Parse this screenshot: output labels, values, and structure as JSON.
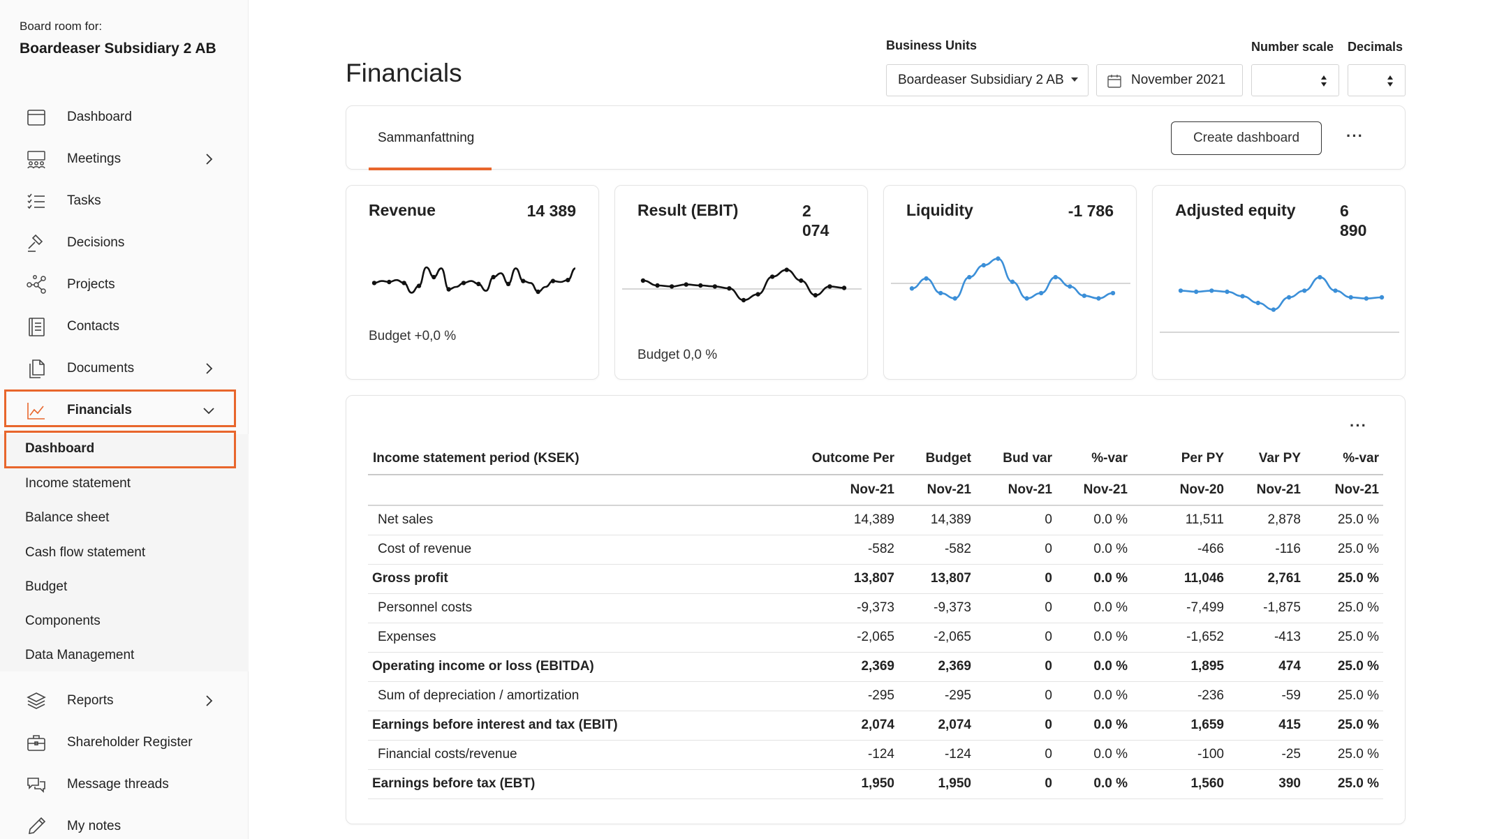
{
  "sidebar": {
    "board_for_label": "Board room for:",
    "board_name": "Boardeaser Subsidiary 2 AB",
    "items": [
      {
        "label": "Dashboard"
      },
      {
        "label": "Meetings"
      },
      {
        "label": "Tasks"
      },
      {
        "label": "Decisions"
      },
      {
        "label": "Projects"
      },
      {
        "label": "Contacts"
      },
      {
        "label": "Documents"
      },
      {
        "label": "Financials"
      },
      {
        "label": "Reports"
      },
      {
        "label": "Shareholder Register"
      },
      {
        "label": "Message threads"
      },
      {
        "label": "My notes"
      }
    ],
    "financials_sub": [
      {
        "label": "Dashboard"
      },
      {
        "label": "Income statement"
      },
      {
        "label": "Balance sheet"
      },
      {
        "label": "Cash flow statement"
      },
      {
        "label": "Budget"
      },
      {
        "label": "Components"
      },
      {
        "label": "Data Management"
      }
    ],
    "highlight_color": "#e8662c"
  },
  "header": {
    "title": "Financials",
    "business_units_label": "Business Units",
    "business_unit_value": "Boardeaser Subsidiary 2 AB",
    "period_value": "November 2021",
    "number_scale_label": "Number scale",
    "number_scale_value": "",
    "decimals_label": "Decimals",
    "decimals_value": ""
  },
  "tabs": {
    "active_tab": "Sammanfattning",
    "create_button": "Create dashboard",
    "more": "···",
    "accent_color": "#e8662c"
  },
  "kpis": [
    {
      "title": "Revenue",
      "value": "14 389",
      "budget": "Budget +0,0 %",
      "line_color": "#111111",
      "spark": [
        0.42,
        0.38,
        0.4,
        0.36,
        0.42,
        0.62,
        0.48,
        0.1,
        0.3,
        0.12,
        0.55,
        0.5,
        0.42,
        0.38,
        0.44,
        0.58,
        0.3,
        0.22,
        0.44,
        0.12,
        0.38,
        0.42,
        0.6,
        0.5,
        0.38,
        0.4,
        0.36,
        0.12
      ]
    },
    {
      "title": "Result (EBIT)",
      "value": "2\n074",
      "budget": "Budget 0,0 %",
      "line_color": "#111111",
      "spark": [
        0.3,
        0.4,
        0.42,
        0.38,
        0.4,
        0.42,
        0.46,
        0.7,
        0.58,
        0.22,
        0.08,
        0.3,
        0.6,
        0.42,
        0.45
      ]
    },
    {
      "title": "Liquidity",
      "value": "-1 786",
      "budget": "",
      "line_color": "#3b8fd8",
      "spark": [
        0.55,
        0.4,
        0.62,
        0.7,
        0.38,
        0.2,
        0.1,
        0.45,
        0.7,
        0.62,
        0.38,
        0.52,
        0.66,
        0.7,
        0.62
      ]
    },
    {
      "title": "Adjusted equity",
      "value": "6\n890",
      "budget": "",
      "line_color": "#3b8fd8",
      "spark": [
        0.38,
        0.4,
        0.38,
        0.4,
        0.48,
        0.6,
        0.72,
        0.5,
        0.38,
        0.14,
        0.38,
        0.5,
        0.52,
        0.5
      ]
    }
  ],
  "table": {
    "more": "···",
    "headers": [
      "Income statement period (KSEK)",
      "Outcome Per",
      "Budget",
      "Bud var",
      "%-var",
      "Per PY",
      "Var PY",
      "%-var"
    ],
    "subheaders": [
      "",
      "Nov-21",
      "Nov-21",
      "Nov-21",
      "Nov-21",
      "Nov-20",
      "Nov-21",
      "Nov-21"
    ],
    "rows": [
      {
        "cells": [
          "Net sales",
          "14,389",
          "14,389",
          "0",
          "0.0 %",
          "11,511",
          "2,878",
          "25.0 %"
        ]
      },
      {
        "cells": [
          "Cost of revenue",
          "-582",
          "-582",
          "0",
          "0.0 %",
          "-466",
          "-116",
          "25.0 %"
        ]
      },
      {
        "cells": [
          "Gross profit",
          "13,807",
          "13,807",
          "0",
          "0.0 %",
          "11,046",
          "2,761",
          "25.0 %"
        ]
      },
      {
        "cells": [
          "Personnel costs",
          "-9,373",
          "-9,373",
          "0",
          "0.0 %",
          "-7,499",
          "-1,875",
          "25.0 %"
        ]
      },
      {
        "cells": [
          "Expenses",
          "-2,065",
          "-2,065",
          "0",
          "0.0 %",
          "-1,652",
          "-413",
          "25.0 %"
        ]
      },
      {
        "cells": [
          "Operating income or loss (EBITDA)",
          "2,369",
          "2,369",
          "0",
          "0.0 %",
          "1,895",
          "474",
          "25.0 %"
        ]
      },
      {
        "cells": [
          "Sum of depreciation / amortization",
          "-295",
          "-295",
          "0",
          "0.0 %",
          "-236",
          "-59",
          "25.0 %"
        ]
      },
      {
        "cells": [
          "Earnings before interest and tax (EBIT)",
          "2,074",
          "2,074",
          "0",
          "0.0 %",
          "1,659",
          "415",
          "25.0 %"
        ]
      },
      {
        "cells": [
          "Financial costs/revenue",
          "-124",
          "-124",
          "0",
          "0.0 %",
          "-100",
          "-25",
          "25.0 %"
        ]
      },
      {
        "cells": [
          "Earnings before tax (EBT)",
          "1,950",
          "1,950",
          "0",
          "0.0 %",
          "1,560",
          "390",
          "25.0 %"
        ]
      }
    ]
  }
}
